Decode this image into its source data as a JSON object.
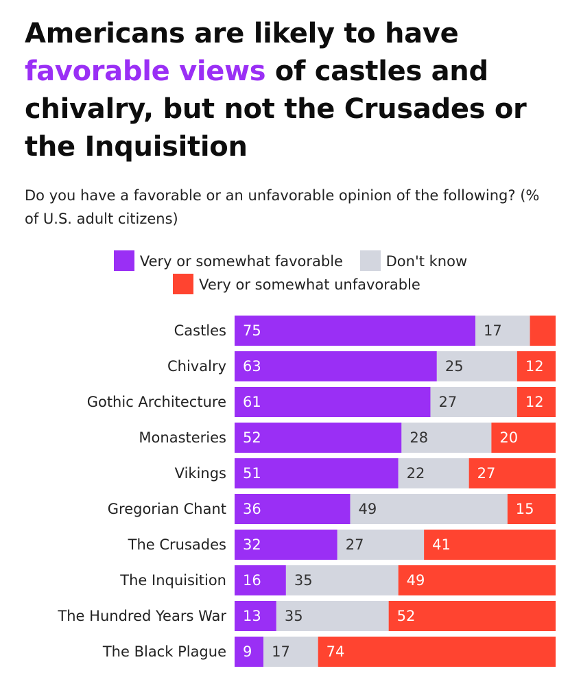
{
  "title": {
    "before": "Americans are likely to have ",
    "highlight": "favorable views",
    "after": " of castles and chivalry, but not the Crusades or the Inquisition"
  },
  "subtitle": "Do you have a favorable or an unfavorable opinion of the following? (% of U.S. adult citizens)",
  "colors": {
    "favorable": "#9a2ff5",
    "dont_know": "#d3d6df",
    "unfavorable": "#ff4430",
    "title_highlight": "#9a2ff5"
  },
  "chart_data": {
    "type": "bar",
    "orientation": "horizontal",
    "stacked": true,
    "title": "Americans are likely to have favorable views of castles and chivalry, but not the Crusades or the Inquisition",
    "subtitle": "Do you have a favorable or an unfavorable opinion of the following? (% of U.S. adult citizens)",
    "xlim": [
      0,
      100
    ],
    "xlabel": "",
    "ylabel": "",
    "grid": false,
    "legend_position": "top",
    "categories": [
      "Castles",
      "Chivalry",
      "Gothic Architecture",
      "Monasteries",
      "Vikings",
      "Gregorian Chant",
      "The Crusades",
      "The Inquisition",
      "The Hundred Years War",
      "The Black Plague"
    ],
    "series": [
      {
        "key": "favorable",
        "name": "Very or somewhat favorable",
        "values": [
          75,
          63,
          61,
          52,
          51,
          36,
          32,
          16,
          13,
          9
        ],
        "labels": [
          "75",
          "63",
          "61",
          "52",
          "51",
          "36",
          "32",
          "16",
          "13",
          "9"
        ]
      },
      {
        "key": "dont_know",
        "name": "Don't know",
        "values": [
          17,
          25,
          27,
          28,
          22,
          49,
          27,
          35,
          35,
          17
        ],
        "labels": [
          "17",
          "25",
          "27",
          "28",
          "22",
          "49",
          "27",
          "35",
          "35",
          "17"
        ]
      },
      {
        "key": "unfavorable",
        "name": "Very or somewhat unfavorable",
        "values": [
          8,
          12,
          12,
          20,
          27,
          15,
          41,
          49,
          52,
          74
        ],
        "labels": [
          "",
          "12",
          "12",
          "20",
          "27",
          "15",
          "41",
          "49",
          "52",
          "74"
        ]
      }
    ]
  },
  "legend": [
    {
      "key": "favorable",
      "label": "Very or somewhat favorable"
    },
    {
      "key": "dont_know",
      "label": "Don't know"
    },
    {
      "key": "unfavorable",
      "label": "Very or somewhat unfavorable"
    }
  ]
}
